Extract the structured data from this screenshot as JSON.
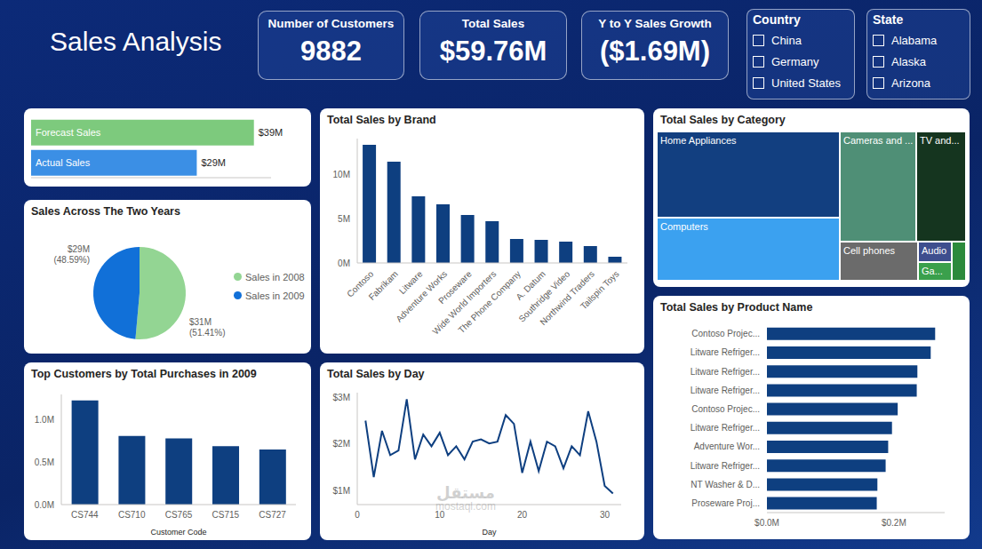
{
  "title": "Sales Analysis",
  "cards": [
    {
      "title": "Number of Customers",
      "value": "9882"
    },
    {
      "title": "Total Sales",
      "value": "$59.76M"
    },
    {
      "title": "Y to Y Sales Growth",
      "value": "($1.69M)"
    }
  ],
  "slicers": [
    {
      "title": "Country",
      "items": [
        "China",
        "Germany",
        "United States"
      ]
    },
    {
      "title": "State",
      "items": [
        "Alabama",
        "Alaska",
        "Arizona"
      ]
    }
  ],
  "watermark": [
    "مستقل",
    "mostaql.com"
  ],
  "chart_data": [
    {
      "type": "bar",
      "orientation": "horizontal",
      "categories": [
        "Forecast Sales",
        "Actual Sales"
      ],
      "values": [
        39,
        29
      ],
      "value_labels": [
        "$39M",
        "$29M"
      ],
      "colors": [
        "#7dca7d",
        "#3b8fe5"
      ],
      "xlim": [
        0,
        42
      ],
      "tick_labels": false,
      "data_labels": true
    },
    {
      "type": "pie",
      "title": "Sales Across The Two Years",
      "categories": [
        "Sales in 2008",
        "Sales in 2009"
      ],
      "values": [
        51.41,
        48.59
      ],
      "value_labels": [
        "(51.41%)",
        "(48.59%)"
      ],
      "amount_labels": [
        "$31M",
        "$29M"
      ],
      "colors": [
        "#93d593",
        "#1170d8"
      ],
      "legend": "right",
      "data_labels": true
    },
    {
      "type": "bar",
      "title": "Top Customers by Total Purchases in 2009",
      "x_label": "Customer Code",
      "categories": [
        "CS744",
        "CS710",
        "CS765",
        "CS715",
        "CS727"
      ],
      "values": [
        1.23,
        0.81,
        0.78,
        0.69,
        0.65
      ],
      "color": "#0e3f80",
      "ylim": [
        0,
        1.3
      ],
      "yticks": [
        {
          "value": 0,
          "label": "0.0M"
        },
        {
          "value": 0.5,
          "label": "0.5M"
        },
        {
          "value": 1,
          "label": "1.0M"
        }
      ],
      "grid": false
    },
    {
      "type": "bar",
      "title": "Total Sales by Brand",
      "categories": [
        "Contoso",
        "Fabrikam",
        "Litware",
        "Adventure Works",
        "Proseware",
        "Wide World Importers",
        "The Phone Company",
        "A. Datum",
        "Southridge Video",
        "Northwind Traders",
        "Tailspin Toys"
      ],
      "values": [
        13.3,
        11.4,
        7.5,
        6.6,
        5.4,
        4.7,
        2.7,
        2.6,
        2.4,
        1.9,
        0.7
      ],
      "color": "#0e3f80",
      "ylim": [
        0,
        14
      ],
      "yticks": [
        {
          "value": 0,
          "label": "0M"
        },
        {
          "value": 5,
          "label": "5M"
        },
        {
          "value": 10,
          "label": "10M"
        }
      ],
      "grid": false
    },
    {
      "type": "line",
      "title": "Total Sales by Day",
      "x_label": "Day",
      "x": [
        1,
        2,
        3,
        4,
        5,
        6,
        7,
        8,
        9,
        10,
        11,
        12,
        13,
        14,
        15,
        16,
        17,
        18,
        19,
        20,
        21,
        22,
        23,
        24,
        25,
        26,
        27,
        28,
        29,
        30,
        31
      ],
      "values": [
        2.5,
        1.29,
        2.28,
        1.76,
        1.86,
        2.96,
        1.67,
        2.2,
        1.95,
        2.24,
        1.76,
        1.95,
        1.67,
        2.05,
        2.1,
        2.01,
        2.05,
        2.62,
        2.43,
        1.38,
        2.05,
        1.42,
        2.05,
        1.95,
        1.48,
        1.95,
        1.76,
        2.7,
        2.05,
        1.1,
        0.94
      ],
      "color": "#0e3f80",
      "marker": "none",
      "xlim": [
        0,
        32
      ],
      "xticks": [
        0,
        10,
        20,
        30
      ],
      "ylim": [
        0.7,
        3.1
      ],
      "yticks": [
        {
          "value": 1,
          "label": "$1M"
        },
        {
          "value": 2,
          "label": "$2M"
        },
        {
          "value": 3,
          "label": "$3M"
        }
      ],
      "grid": false
    },
    {
      "type": "treemap",
      "title": "Total Sales by Category",
      "categories": [
        "Home Appliances",
        "Computers",
        "Cameras and ...",
        "TV and...",
        "Cell phones",
        "Audio",
        "Ga...",
        null
      ],
      "values": [
        20.1,
        14.8,
        10.8,
        7.0,
        3.9,
        0.9,
        0.8,
        0.7
      ],
      "colors": [
        "#123f80",
        "#3ba1f0",
        "#4f8f76",
        "#15351f",
        "#6b6b6b",
        "#3e4e8e",
        "#3aa04c",
        "#2c8a3c"
      ]
    },
    {
      "type": "bar",
      "orientation": "horizontal",
      "title": "Total Sales by Product Name",
      "categories": [
        "Contoso Projec...",
        "Litware Refriger...",
        "Litware Refriger...",
        "Litware Refriger...",
        "Contoso Projec...",
        "Litware Refriger...",
        "Adventure Wor...",
        "Litware Refriger...",
        "NT Washer & D...",
        "Proseware Proj..."
      ],
      "values": [
        0.265,
        0.258,
        0.237,
        0.236,
        0.206,
        0.197,
        0.191,
        0.187,
        0.174,
        0.173
      ],
      "color": "#0e3f80",
      "xlim": [
        0,
        0.28
      ],
      "xticks": [
        {
          "value": 0,
          "label": "$0.0M"
        },
        {
          "value": 0.2,
          "label": "$0.2M"
        }
      ],
      "grid": false
    }
  ]
}
